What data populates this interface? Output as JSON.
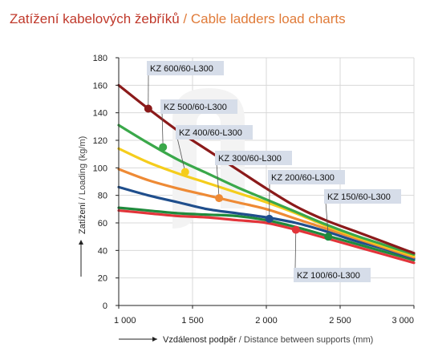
{
  "title": {
    "cz": "Zatížení kabelových žebříků",
    "separator": " / ",
    "en": "Cable ladders load charts"
  },
  "chart_data": {
    "type": "line",
    "xlabel": "Vzdálenost podpěr / Distance between supports (mm)",
    "xlabel_cz": "Vzdálenost podpěr",
    "xlabel_en": " / Distance between supports (mm)",
    "ylabel": "Zatížení / Loading (kg/m)",
    "ylabel_cz": "Zatížení",
    "ylabel_en": " / Loading (kg/m)",
    "xlim": [
      1000,
      3000
    ],
    "ylim": [
      0,
      180
    ],
    "xticks": [
      1000,
      1500,
      2000,
      2500,
      3000
    ],
    "xtick_labels": [
      "1 000",
      "1 500",
      "2 000",
      "2 500",
      "3 000"
    ],
    "yticks": [
      0,
      20,
      40,
      60,
      80,
      100,
      120,
      140,
      160,
      180
    ],
    "grid": true,
    "series": [
      {
        "name": "KZ 600/60-L300",
        "color": "#8b1a1a",
        "x": [
          1000,
          1200,
          1400,
          1600,
          1800,
          2000,
          2200,
          2400,
          2600,
          2800,
          3000
        ],
        "y": [
          160,
          143,
          127,
          113,
          99,
          85,
          72,
          62,
          54,
          46,
          38
        ],
        "marker": {
          "x": 1200,
          "y": 143
        }
      },
      {
        "name": "KZ 500/60-L300",
        "color": "#3aa84a",
        "x": [
          1000,
          1200,
          1400,
          1600,
          1800,
          2000,
          2200,
          2400,
          2600,
          2800,
          3000
        ],
        "y": [
          131,
          118,
          106,
          96,
          86,
          77,
          68,
          59,
          51,
          44,
          37
        ],
        "marker": {
          "x": 1300,
          "y": 115
        }
      },
      {
        "name": "KZ 400/60-L300",
        "color": "#f5cd1c",
        "x": [
          1000,
          1200,
          1400,
          1600,
          1800,
          2000,
          2200,
          2400,
          2600,
          2800,
          3000
        ],
        "y": [
          114,
          104,
          96,
          89,
          82,
          75,
          67,
          58,
          50,
          43,
          36
        ],
        "marker": {
          "x": 1450,
          "y": 97
        }
      },
      {
        "name": "KZ 300/60-L300",
        "color": "#ee8a35",
        "x": [
          1000,
          1200,
          1400,
          1600,
          1800,
          2000,
          2200,
          2400,
          2600,
          2800,
          3000
        ],
        "y": [
          99,
          91,
          85,
          80,
          75,
          70,
          63,
          56,
          49,
          42,
          35
        ],
        "marker": {
          "x": 1680,
          "y": 78
        }
      },
      {
        "name": "KZ 200/60-L300",
        "color": "#1f4e8c",
        "x": [
          1000,
          1200,
          1400,
          1600,
          1800,
          2000,
          2200,
          2400,
          2600,
          2800,
          3000
        ],
        "y": [
          86,
          80,
          75,
          70,
          67,
          64,
          60,
          54,
          47,
          41,
          34
        ],
        "marker": {
          "x": 2020,
          "y": 63
        }
      },
      {
        "name": "KZ 150/60-L300",
        "color": "#1f8a3c",
        "x": [
          1000,
          1200,
          1400,
          1600,
          1800,
          2000,
          2200,
          2400,
          2600,
          2800,
          3000
        ],
        "y": [
          71,
          69,
          67,
          66,
          65,
          62,
          57,
          51,
          45,
          39,
          33
        ],
        "marker": {
          "x": 2420,
          "y": 50
        }
      },
      {
        "name": "KZ 100/60-L300",
        "color": "#e2343a",
        "x": [
          1000,
          1200,
          1400,
          1600,
          1800,
          2000,
          2200,
          2400,
          2600,
          2800,
          3000
        ],
        "y": [
          69,
          67,
          65,
          64,
          62,
          60,
          55,
          49,
          43,
          37,
          31
        ],
        "marker": {
          "x": 2200,
          "y": 55
        }
      }
    ]
  }
}
